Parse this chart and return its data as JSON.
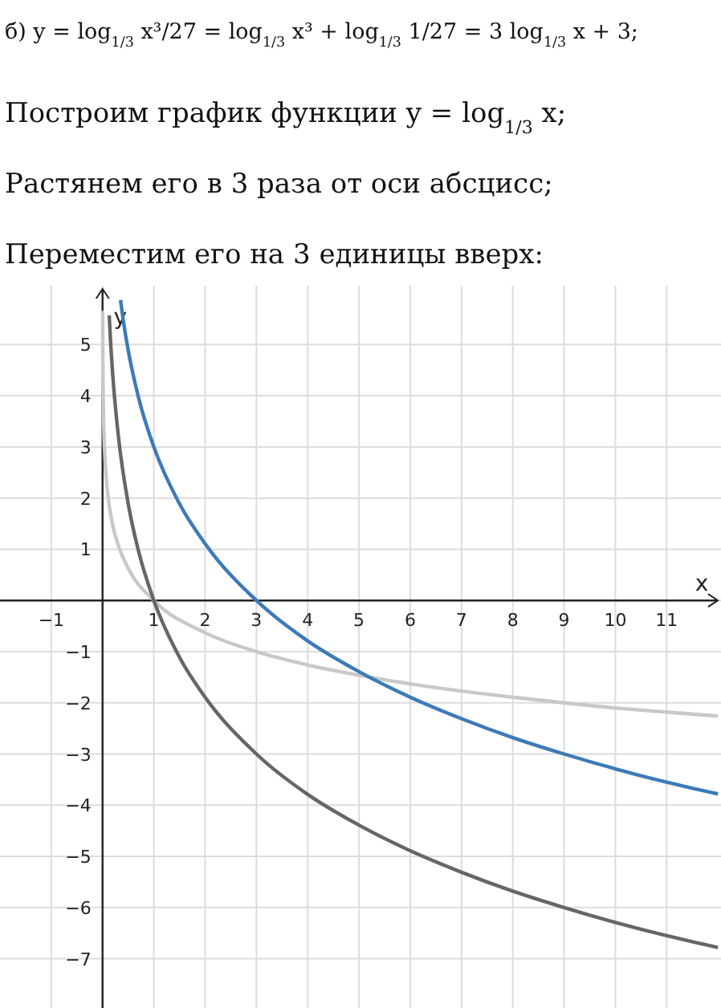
{
  "chart_data": {
    "type": "line",
    "annotations": [
      "б) y = log$_{1/3}$ x³/27 = log$_{1/3}$ x³ + log$_{1/3}$ 1/27 = 3 log$_{1/3}$ x + 3;",
      "Построим график функции y = log$_{1/3}$ x;",
      "Растянем его в 3 раза от оси абсцисс;",
      "Переместим его на 3 единицы вверх:"
    ],
    "xlabel": "x",
    "ylabel": "y",
    "xlim": [
      -2,
      12.06
    ],
    "ylim": [
      -7.9,
      6.15
    ],
    "xticks": [
      -1,
      {
        "value": 0,
        "label": null
      },
      1,
      2,
      3,
      4,
      5,
      6,
      7,
      8,
      9,
      10,
      11
    ],
    "yticks": [
      -7,
      -6,
      -5,
      -4,
      -3,
      -2,
      -1,
      {
        "value": 0,
        "label": null
      },
      1,
      2,
      3,
      4,
      5
    ],
    "grid": true,
    "marker": "none",
    "line_style": "solid",
    "series": [
      {
        "color": "#c8c8c8",
        "x": [
          0.002,
          0.005,
          0.02,
          0.05,
          0.1,
          0.2,
          0.3,
          0.5,
          1,
          2,
          3,
          4,
          5,
          6,
          7,
          8,
          9,
          10,
          11,
          12
        ],
        "values": [
          5.66,
          4.82,
          3.56,
          2.73,
          2.1,
          1.46,
          1.1,
          0.63,
          0,
          -0.63,
          -1,
          -1.26,
          -1.46,
          -1.63,
          -1.77,
          -1.89,
          -2,
          -2.1,
          -2.18,
          -2.26
        ]
      },
      {
        "color": "#666666",
        "x": [
          0.13,
          0.15,
          0.2,
          0.3,
          0.5,
          0.7,
          1,
          1.5,
          2,
          3,
          4,
          5,
          6,
          7,
          8,
          9,
          10,
          11,
          12
        ],
        "values": [
          5.57,
          5.18,
          4.39,
          3.29,
          1.89,
          0.97,
          0,
          -1.11,
          -1.89,
          -3,
          -3.79,
          -4.39,
          -4.89,
          -5.31,
          -5.68,
          -6,
          -6.29,
          -6.55,
          -6.78
        ]
      },
      {
        "color": "#3d7ab8",
        "x": [
          0.35,
          0.4,
          0.5,
          0.7,
          1,
          1.5,
          2,
          3,
          4,
          5,
          6,
          7,
          8,
          9,
          10,
          11,
          12
        ],
        "values": [
          5.87,
          5.5,
          4.89,
          3.97,
          3,
          1.89,
          1.11,
          0,
          -0.79,
          -1.39,
          -1.89,
          -2.31,
          -2.68,
          -3,
          -3.29,
          -3.55,
          -3.78
        ]
      }
    ]
  }
}
